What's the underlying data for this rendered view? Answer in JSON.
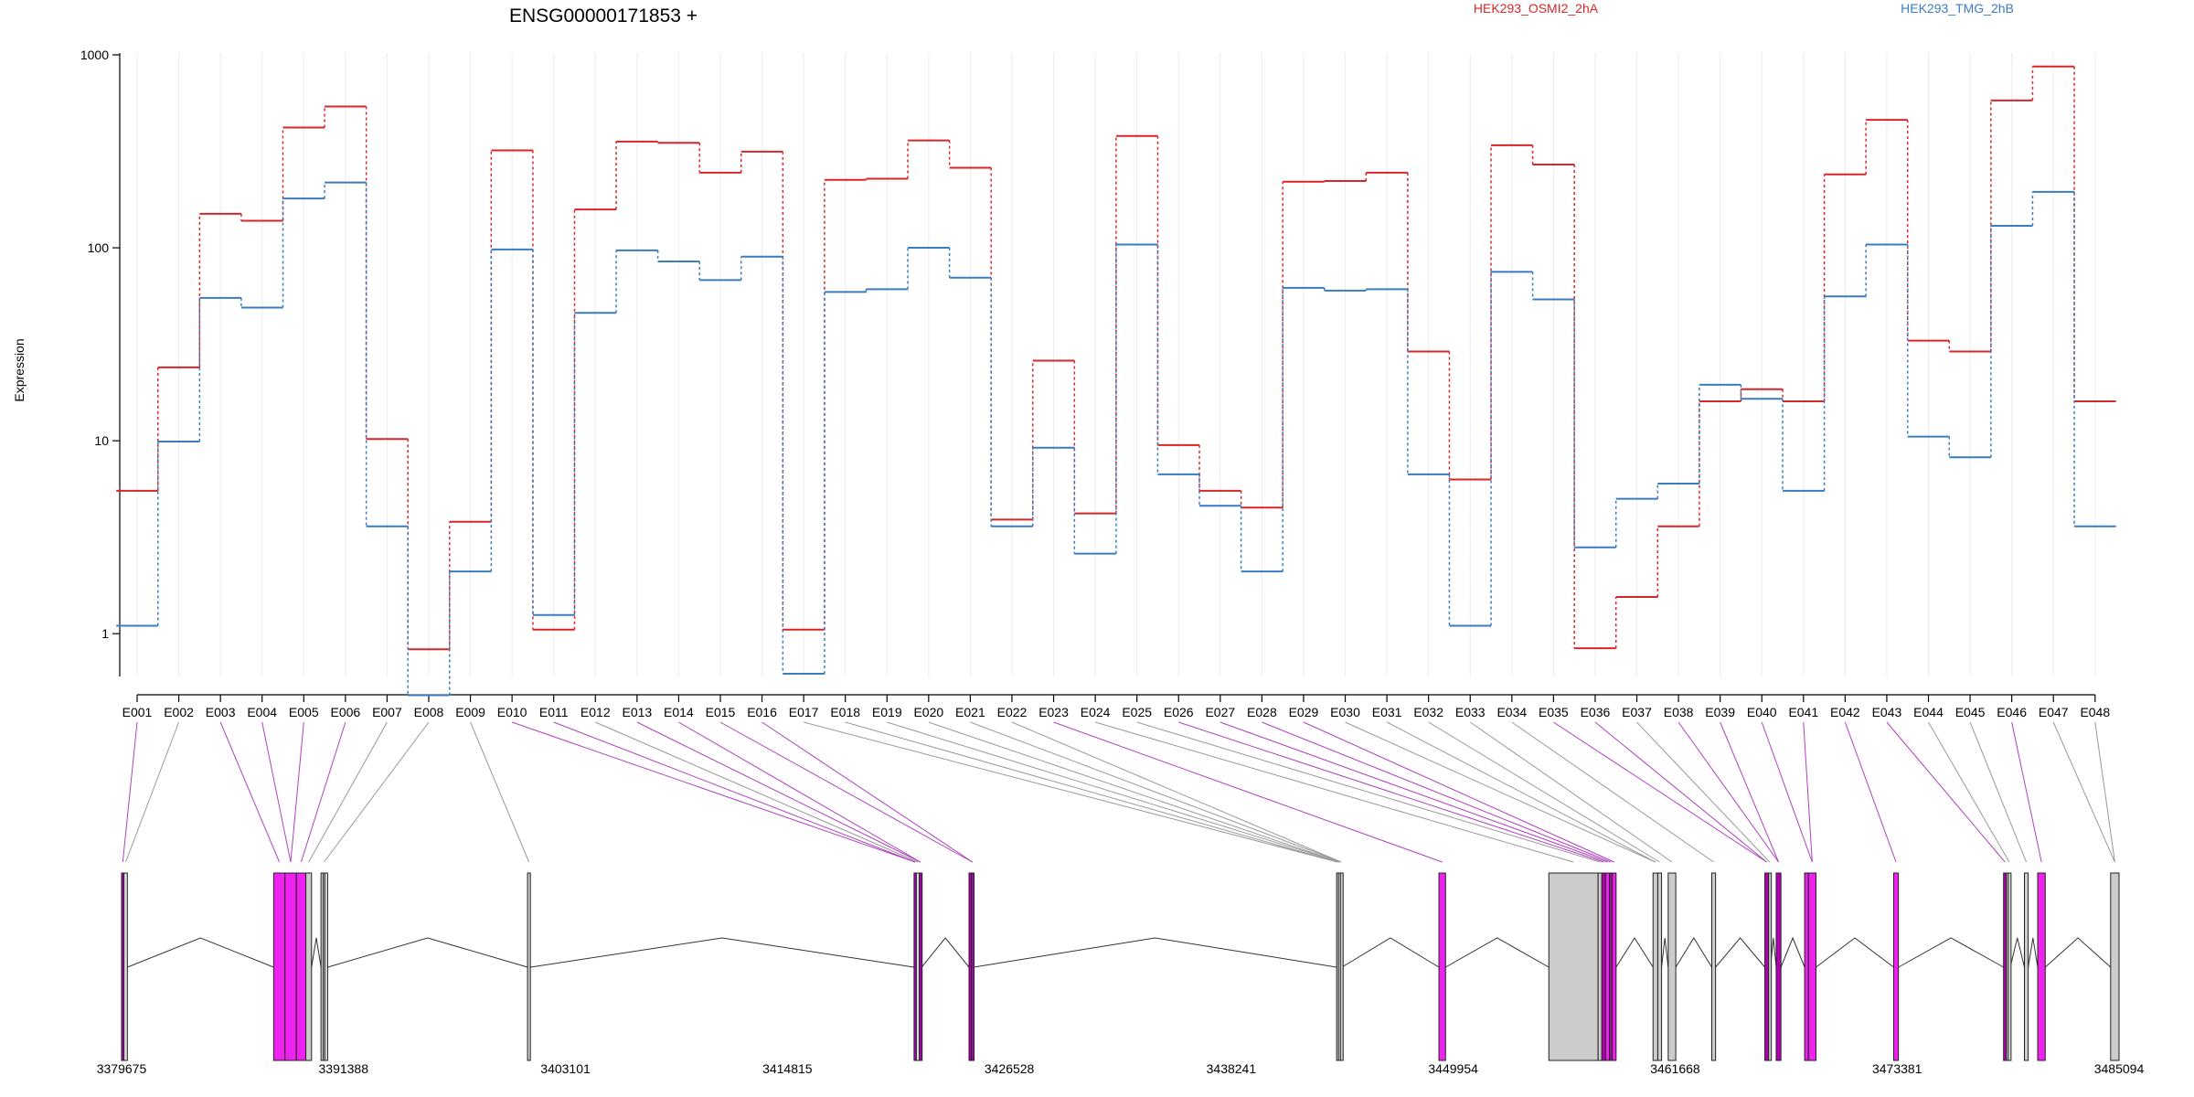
{
  "chart_data": {
    "type": "line",
    "title": "ENSG00000171853 +",
    "ylabel": "Expression",
    "yscale": "log",
    "ylim": [
      0.6,
      1000
    ],
    "yticks": [
      1,
      10,
      100,
      1000
    ],
    "ytick_labels": [
      "1",
      "10",
      "100",
      "1000"
    ],
    "grid": "vertical",
    "legend_position": "top",
    "categories": [
      "E001",
      "E002",
      "E003",
      "E004",
      "E005",
      "E006",
      "E007",
      "E008",
      "E009",
      "E010",
      "E011",
      "E012",
      "E013",
      "E014",
      "E015",
      "E016",
      "E017",
      "E018",
      "E019",
      "E020",
      "E021",
      "E022",
      "E023",
      "E024",
      "E025",
      "E026",
      "E027",
      "E028",
      "E029",
      "E030",
      "E031",
      "E032",
      "E033",
      "E034",
      "E035",
      "E036",
      "E037",
      "E038",
      "E039",
      "E040",
      "E041",
      "E042",
      "E043",
      "E044",
      "E045",
      "E046",
      "E047",
      "E048"
    ],
    "series": [
      {
        "name": "HEK293_OSMI2_2hA",
        "color": "#d62728",
        "values": [
          5.5,
          24,
          150,
          138,
          420,
          540,
          10.2,
          0.83,
          3.8,
          320,
          1.05,
          158,
          355,
          350,
          245,
          315,
          1.05,
          225,
          228,
          360,
          260,
          3.9,
          26,
          4.2,
          380,
          9.5,
          5.5,
          4.5,
          220,
          222,
          245,
          29,
          6.3,
          340,
          270,
          0.84,
          1.55,
          3.6,
          16,
          18.5,
          16,
          240,
          460,
          33,
          29,
          580,
          870,
          16
        ]
      },
      {
        "name": "HEK293_TMG_2hB",
        "color": "#3a7cc1",
        "values": [
          1.1,
          9.9,
          55,
          49,
          180,
          218,
          3.6,
          0.48,
          2.1,
          98,
          1.25,
          46,
          97,
          85,
          68,
          90,
          0.62,
          59,
          61,
          100,
          70,
          3.6,
          9.2,
          2.6,
          104,
          6.7,
          4.6,
          2.1,
          62,
          60,
          61,
          6.7,
          1.1,
          75,
          54,
          2.8,
          5,
          6,
          19.5,
          16.5,
          5.5,
          56,
          104,
          10.5,
          8.2,
          130,
          195,
          3.6
        ]
      }
    ],
    "genomic_axis": {
      "ticks": [
        3379675,
        3391388,
        3403101,
        3414815,
        3426528,
        3438241,
        3449954,
        3461668,
        3473381,
        3485094
      ],
      "range": [
        3379675,
        3485094
      ]
    },
    "exons": [
      {
        "id": "E001",
        "start": 3379675,
        "end": 3379800,
        "color": "#b000b0"
      },
      {
        "id": "E002",
        "start": 3379800,
        "end": 3379980,
        "color": "#dddddd"
      },
      {
        "id": "E003",
        "start": 3387700,
        "end": 3388300,
        "color": "#ee22ee"
      },
      {
        "id": "E004",
        "start": 3388300,
        "end": 3388900,
        "color": "#ee22ee"
      },
      {
        "id": "E005",
        "start": 3388900,
        "end": 3389400,
        "color": "#ee22ee"
      },
      {
        "id": "E006",
        "start": 3389400,
        "end": 3389700,
        "color": "#cccccc"
      },
      {
        "id": "E007",
        "start": 3390200,
        "end": 3390320,
        "color": "#cccccc"
      },
      {
        "id": "E008",
        "start": 3390320,
        "end": 3390400,
        "color": "#dddddd"
      },
      {
        "id": "E009",
        "start": 3390400,
        "end": 3390550,
        "color": "#dddddd"
      },
      {
        "id": "E010",
        "start": 3401100,
        "end": 3401250,
        "color": "#cccccc"
      },
      {
        "id": "E011",
        "start": 3421500,
        "end": 3421620,
        "color": "#b000b0"
      },
      {
        "id": "E012",
        "start": 3421620,
        "end": 3421780,
        "color": "#dddddd"
      },
      {
        "id": "E013",
        "start": 3421780,
        "end": 3421900,
        "color": "#b000b0"
      },
      {
        "id": "E014",
        "start": 3424400,
        "end": 3424520,
        "color": "#b000b0"
      },
      {
        "id": "E015",
        "start": 3424520,
        "end": 3424640,
        "color": "#b000b0"
      },
      {
        "id": "E016",
        "start": 3443800,
        "end": 3443900,
        "color": "#cccccc"
      },
      {
        "id": "E017",
        "start": 3443900,
        "end": 3444000,
        "color": "#dddddd"
      },
      {
        "id": "E018",
        "start": 3444000,
        "end": 3444080,
        "color": "#cccccc"
      },
      {
        "id": "E019",
        "start": 3449200,
        "end": 3449550,
        "color": "#ee22ee"
      },
      {
        "id": "E020",
        "start": 3455000,
        "end": 3457600,
        "color": "#cccccc"
      },
      {
        "id": "E021",
        "start": 3457600,
        "end": 3457800,
        "color": "#cccccc"
      },
      {
        "id": "E022",
        "start": 3457800,
        "end": 3458000,
        "color": "#b000b0"
      },
      {
        "id": "E023",
        "start": 3458000,
        "end": 3458200,
        "color": "#ee22ee"
      },
      {
        "id": "E024",
        "start": 3458200,
        "end": 3458350,
        "color": "#b000b0"
      },
      {
        "id": "E025",
        "start": 3458350,
        "end": 3458550,
        "color": "#ee22ee"
      },
      {
        "id": "E026",
        "start": 3460500,
        "end": 3460750,
        "color": "#cccccc"
      },
      {
        "id": "E027",
        "start": 3460750,
        "end": 3460950,
        "color": "#cccccc"
      },
      {
        "id": "E028",
        "start": 3461300,
        "end": 3461700,
        "color": "#cccccc"
      },
      {
        "id": "E029",
        "start": 3463600,
        "end": 3463800,
        "color": "#cccccc"
      },
      {
        "id": "E030",
        "start": 3466400,
        "end": 3466600,
        "color": "#b000b0"
      },
      {
        "id": "E031",
        "start": 3466600,
        "end": 3466700,
        "color": "#cccccc"
      },
      {
        "id": "E032",
        "start": 3467000,
        "end": 3467250,
        "color": "#b000b0"
      },
      {
        "id": "E033",
        "start": 3468500,
        "end": 3468700,
        "color": "#ee22ee"
      },
      {
        "id": "E034",
        "start": 3468700,
        "end": 3469100,
        "color": "#ee22ee"
      },
      {
        "id": "E035",
        "start": 3473200,
        "end": 3473450,
        "color": "#ee22ee"
      },
      {
        "id": "E036",
        "start": 3479000,
        "end": 3479150,
        "color": "#b000b0"
      },
      {
        "id": "E037",
        "start": 3479150,
        "end": 3479250,
        "color": "#cccccc"
      },
      {
        "id": "E038",
        "start": 3479250,
        "end": 3479350,
        "color": "#dddddd"
      },
      {
        "id": "E039",
        "start": 3480100,
        "end": 3480300,
        "color": "#cccccc"
      },
      {
        "id": "E040",
        "start": 3480800,
        "end": 3481200,
        "color": "#ee22ee"
      },
      {
        "id": "E041",
        "start": 3484650,
        "end": 3485094,
        "color": "#cccccc"
      }
    ],
    "connector_exon_index": [
      0,
      1,
      2,
      3,
      3,
      4,
      5,
      7,
      9,
      10,
      10,
      11,
      12,
      12,
      14,
      14,
      15,
      15,
      16,
      16,
      17,
      17,
      18,
      19,
      20,
      21,
      22,
      23,
      24,
      25,
      25,
      26,
      27,
      28,
      29,
      29,
      30,
      31,
      31,
      33,
      33,
      34,
      35,
      37,
      38,
      39,
      40,
      40
    ]
  }
}
